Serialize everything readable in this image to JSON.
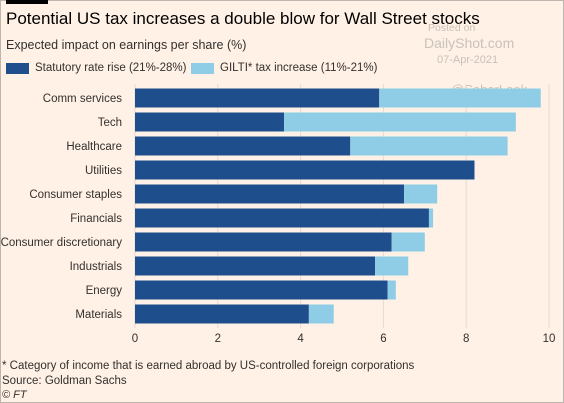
{
  "chart_data": {
    "type": "bar",
    "orientation": "horizontal",
    "stacked": true,
    "title": "Potential US tax increases a double blow for Wall Street stocks",
    "subtitle": "Expected impact on earnings per share (%)",
    "categories": [
      "Comm services",
      "Tech",
      "Healthcare",
      "Utilities",
      "Consumer staples",
      "Financials",
      "Consumer discretionary",
      "Industrials",
      "Energy",
      "Materials"
    ],
    "series": [
      {
        "name": "Statutory rate rise (21%-28%)",
        "color": "#1f4e8c",
        "values": [
          5.9,
          3.6,
          5.2,
          8.2,
          6.5,
          7.1,
          6.2,
          5.8,
          6.1,
          4.2
        ]
      },
      {
        "name": "GILTI* tax increase (11%-21%)",
        "color": "#8fcde6",
        "values": [
          3.9,
          5.6,
          3.8,
          0.0,
          0.8,
          0.1,
          0.8,
          0.8,
          0.2,
          0.6
        ]
      }
    ],
    "xlim": [
      0,
      10
    ],
    "xticks": [
      "0",
      "2",
      "4",
      "6",
      "8",
      "10"
    ],
    "grid": true,
    "legend_position": "top-left"
  },
  "footnote": "* Category of income that is earned abroad by US-controlled foreign corporations",
  "source": "Source: Goldman Sachs",
  "copyright": "© FT",
  "watermark": {
    "posted": "Posted on",
    "site": "DailyShot.com",
    "date": "07-Apr-2021",
    "handle": "@SoberLook"
  }
}
